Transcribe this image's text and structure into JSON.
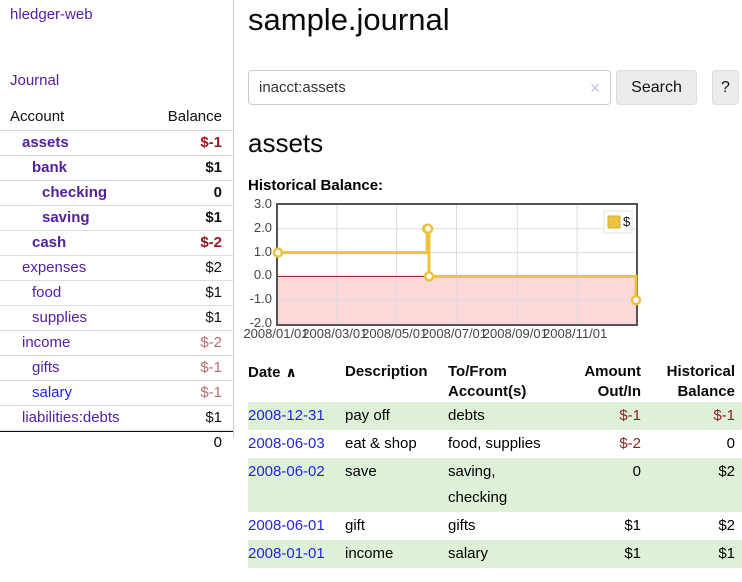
{
  "app": {
    "title": "hledger-web",
    "nav": {
      "journal": "Journal"
    }
  },
  "colors": {
    "purple": "#55209e",
    "link_blue": "#2323dd",
    "neg_dark": "#96181c",
    "neg_light": "#bd6a6e",
    "stripe_green": "#dff0d8",
    "gold": "#edc240",
    "gold_border": "#d8ae2f",
    "pink": "#fbd9d9",
    "zero_line": "#8b1414",
    "grid": "#dcdcdc",
    "chart_border": "#545454"
  },
  "sidebar": {
    "account_header": "Account",
    "balance_header": "Balance",
    "accounts": [
      {
        "name": "assets",
        "balance": "$-1",
        "depth": 1,
        "bold": true,
        "neg": "dark",
        "link": "purple"
      },
      {
        "name": "bank",
        "balance": "$1",
        "depth": 2,
        "bold": true,
        "neg": "none",
        "link": "purple"
      },
      {
        "name": "checking",
        "balance": "0",
        "depth": 3,
        "bold": true,
        "neg": "none",
        "link": "purple"
      },
      {
        "name": "saving",
        "balance": "$1",
        "depth": 3,
        "bold": true,
        "neg": "none",
        "link": "purple"
      },
      {
        "name": "cash",
        "balance": "$-2",
        "depth": 2,
        "bold": true,
        "neg": "dark",
        "link": "purple"
      },
      {
        "name": "expenses",
        "balance": "$2",
        "depth": 1,
        "bold": false,
        "neg": "none",
        "link": "purple"
      },
      {
        "name": "food",
        "balance": "$1",
        "depth": 2,
        "bold": false,
        "neg": "none",
        "link": "purple"
      },
      {
        "name": "supplies",
        "balance": "$1",
        "depth": 2,
        "bold": false,
        "neg": "none",
        "link": "purple"
      },
      {
        "name": "income",
        "balance": "$-2",
        "depth": 1,
        "bold": false,
        "neg": "light",
        "link": "purple"
      },
      {
        "name": "gifts",
        "balance": "$-1",
        "depth": 2,
        "bold": false,
        "neg": "light",
        "link": "purple"
      },
      {
        "name": "salary",
        "balance": "$-1",
        "depth": 2,
        "bold": false,
        "neg": "light",
        "link": "blue"
      },
      {
        "name": "liabilities:debts",
        "balance": "$1",
        "depth": 1,
        "bold": false,
        "neg": "none",
        "link": "purple"
      }
    ],
    "total": "0"
  },
  "main": {
    "title": "sample.journal",
    "search": {
      "value": "inacct:assets",
      "clear_icon": "✕",
      "search_button": "Search",
      "help_button": "?"
    },
    "account_heading": "assets",
    "section_heading": "Historical Balance:"
  },
  "chart_data": {
    "type": "line",
    "title": "Historical Balance",
    "step": true,
    "x_start": "2008-01-01",
    "x_range_days": 365,
    "ylim": [
      -2,
      3
    ],
    "y_ticks": [
      {
        "label": "3.0",
        "value": 3
      },
      {
        "label": "2.0",
        "value": 2
      },
      {
        "label": "1.0",
        "value": 1
      },
      {
        "label": "0.0",
        "value": 0
      },
      {
        "label": "-1.0",
        "value": -1
      },
      {
        "label": "-2.0",
        "value": -2
      }
    ],
    "x_ticks": [
      {
        "label": "2008/01/01",
        "day": 0
      },
      {
        "label": "2008/03/01",
        "day": 60
      },
      {
        "label": "2008/05/01",
        "day": 121
      },
      {
        "label": "2008/07/01",
        "day": 182
      },
      {
        "label": "2008/09/01",
        "day": 244
      },
      {
        "label": "2008/11/01",
        "day": 305
      }
    ],
    "legend": {
      "label": "$",
      "position": "top-right"
    },
    "grid": true,
    "negative_region_shaded": true,
    "series": [
      {
        "name": "$",
        "points": [
          {
            "date": "2008-01-01",
            "day": 0,
            "value": 1
          },
          {
            "date": "2008-06-01",
            "day": 152,
            "value": 2
          },
          {
            "date": "2008-06-02",
            "day": 153,
            "value": 2
          },
          {
            "date": "2008-06-03",
            "day": 154,
            "value": 0
          },
          {
            "date": "2008-12-31",
            "day": 365,
            "value": -1
          }
        ]
      }
    ]
  },
  "register": {
    "columns": [
      {
        "line1": "Date",
        "line2": "",
        "align": "left",
        "sort_icon": "∧"
      },
      {
        "line1": "Description",
        "line2": "",
        "align": "left"
      },
      {
        "line1": "To/From",
        "line2": "Account(s)",
        "align": "left"
      },
      {
        "line1": "Amount",
        "line2": "Out/In",
        "align": "right"
      },
      {
        "line1": "Historical",
        "line2": "Balance",
        "align": "right"
      }
    ],
    "rows": [
      {
        "date": "2008-12-31",
        "description": "pay off",
        "accounts": "debts",
        "amount": "$-1",
        "amount_neg": true,
        "balance": "$-1",
        "balance_neg": true,
        "shaded": true
      },
      {
        "date": "2008-06-03",
        "description": "eat & shop",
        "accounts": "food, supplies",
        "amount": "$-2",
        "amount_neg": true,
        "balance": "0",
        "balance_neg": false,
        "shaded": false
      },
      {
        "date": "2008-06-02",
        "description": "save",
        "accounts": "saving, checking",
        "amount": "0",
        "amount_neg": false,
        "balance": "$2",
        "balance_neg": false,
        "shaded": true
      },
      {
        "date": "2008-06-01",
        "description": "gift",
        "accounts": "gifts",
        "amount": "$1",
        "amount_neg": false,
        "balance": "$2",
        "balance_neg": false,
        "shaded": false
      },
      {
        "date": "2008-01-01",
        "description": "income",
        "accounts": "salary",
        "amount": "$1",
        "amount_neg": false,
        "balance": "$1",
        "balance_neg": false,
        "shaded": true
      }
    ]
  }
}
